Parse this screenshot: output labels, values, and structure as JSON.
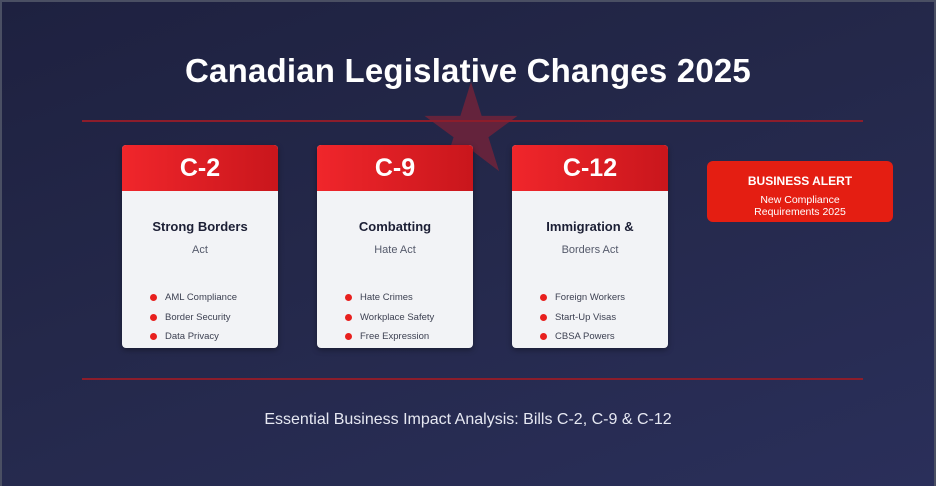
{
  "title": "Canadian Legislative Changes 2025",
  "bills": [
    {
      "code": "C-2",
      "title": "Strong Borders",
      "subtitle": "Act",
      "items": [
        "AML Compliance",
        "Border Security",
        "Data Privacy"
      ]
    },
    {
      "code": "C-9",
      "title": "Combatting",
      "subtitle": "Hate Act",
      "items": [
        "Hate Crimes",
        "Workplace Safety",
        "Free Expression"
      ]
    },
    {
      "code": "C-12",
      "title": "Immigration &",
      "subtitle": "Borders Act",
      "items": [
        "Foreign Workers",
        "Start-Up Visas",
        "CBSA Powers"
      ]
    }
  ],
  "alert": {
    "title": "BUSINESS ALERT",
    "line1": "New Compliance",
    "line2": "Requirements 2025"
  },
  "footer": "Essential Business Impact Analysis: Bills C-2, C-9 & C-12",
  "colors": {
    "accent_red": "#e41e12",
    "background": "#24284a",
    "card": "#f2f3f6"
  }
}
